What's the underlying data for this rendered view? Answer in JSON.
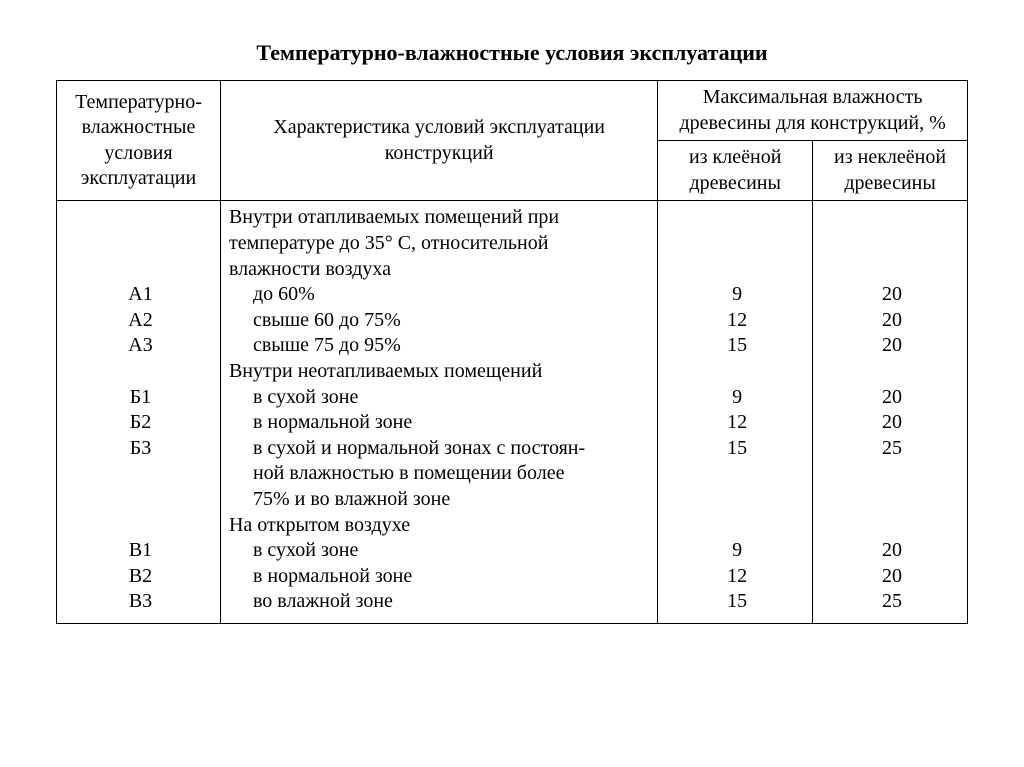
{
  "title": "Температурно-влажностные условия эксплуатации",
  "header": {
    "col1": "Температурно-влажностные условия эксплуатации",
    "col2": "Характеристика условий эксплуатации конструкций",
    "col3_top": "Максимальная влажность древесины для конструкций, %",
    "col3_a": "из клеёной древесины",
    "col3_b": "из неклеёной древесины"
  },
  "groups": [
    {
      "intro": [
        "Внутри отапливаемых помещений при",
        "температуре до 35° С, относительной",
        "влажности воздуха"
      ],
      "rows": [
        {
          "code": "А1",
          "desc": [
            "до 60%"
          ],
          "v1": "9",
          "v2": "20"
        },
        {
          "code": "А2",
          "desc": [
            "свыше 60 до 75%"
          ],
          "v1": "12",
          "v2": "20"
        },
        {
          "code": "А3",
          "desc": [
            "свыше 75 до 95%"
          ],
          "v1": "15",
          "v2": "20"
        }
      ]
    },
    {
      "intro": [
        "Внутри неотапливаемых помещений"
      ],
      "rows": [
        {
          "code": "Б1",
          "desc": [
            "в сухой зоне"
          ],
          "v1": "9",
          "v2": "20"
        },
        {
          "code": "Б2",
          "desc": [
            "в нормальной зоне"
          ],
          "v1": "12",
          "v2": "20"
        },
        {
          "code": "Б3",
          "desc": [
            "в сухой и нормальной зонах с постоян-",
            "ной влажностью в помещении более",
            "75% и во влажной зоне"
          ],
          "v1": "15",
          "v2": "25"
        }
      ]
    },
    {
      "intro": [
        "На открытом воздухе"
      ],
      "rows": [
        {
          "code": "В1",
          "desc": [
            "в сухой зоне"
          ],
          "v1": "9",
          "v2": "20"
        },
        {
          "code": "В2",
          "desc": [
            "в нормальной зоне"
          ],
          "v1": "12",
          "v2": "20"
        },
        {
          "code": "В3",
          "desc": [
            "во влажной зоне"
          ],
          "v1": "15",
          "v2": "25"
        }
      ]
    }
  ]
}
